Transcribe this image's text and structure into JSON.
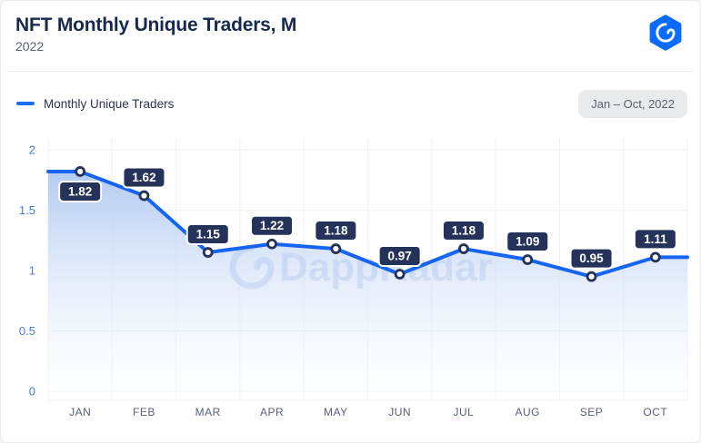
{
  "header": {
    "title": "NFT Monthly Unique Traders, M",
    "subtitle": "2022"
  },
  "toolbar": {
    "legend_label": "Monthly Unique Traders",
    "range_badge": "Jan – Oct, 2022"
  },
  "watermark": "DappRadar",
  "colors": {
    "line": "#1565f2",
    "area_top": "#afc8f1",
    "area_bottom": "#fdfeff",
    "label_bg": "#25335a",
    "label_text": "#ffffff",
    "marker_fill": "#ffffff",
    "marker_stroke": "#25335a",
    "ytick": "#4a7cdb",
    "xtick": "#57617e",
    "grid": "#eef1f7",
    "logo_blue": "#0a6cff",
    "watermark_blue": "#b9cdf0"
  },
  "chart_data": {
    "type": "line",
    "title": "NFT Monthly Unique Traders, M",
    "categories": [
      "JAN",
      "FEB",
      "MAR",
      "APR",
      "MAY",
      "JUN",
      "JUL",
      "AUG",
      "SEP",
      "OCT"
    ],
    "series": [
      {
        "name": "Monthly Unique Traders",
        "values": [
          1.82,
          1.62,
          1.15,
          1.22,
          1.18,
          0.97,
          1.18,
          1.09,
          0.95,
          1.11
        ]
      }
    ],
    "ylim": [
      0,
      2
    ],
    "yticks": [
      0,
      0.5,
      1,
      1.5,
      2
    ],
    "grid": true,
    "legend_position": "top-left",
    "point_labels": true,
    "area_fill": true
  }
}
